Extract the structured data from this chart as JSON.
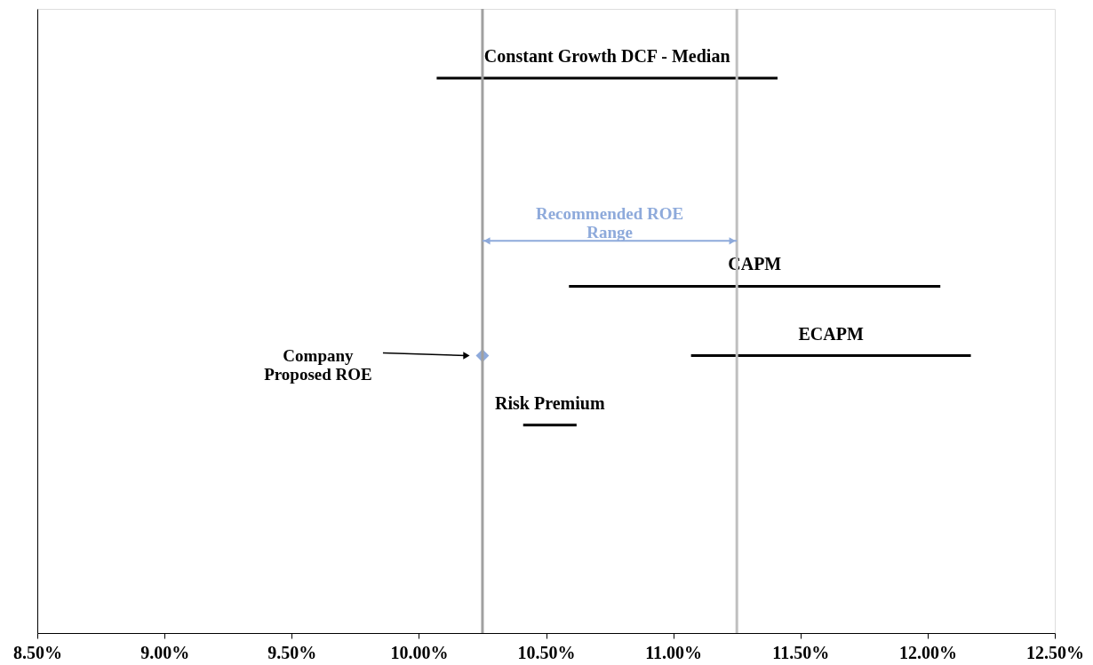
{
  "chart_data": {
    "type": "bar",
    "orientation": "horizontal",
    "tick_labels": "x",
    "grid": false,
    "categories": [
      "Constant Growth DCF - Median",
      null,
      null,
      "CAPM",
      "ECAPM",
      "Risk Premium",
      null,
      null
    ],
    "series": [
      {
        "color": "#000000",
        "base": [
          10.07,
          null,
          null,
          10.59,
          11.07,
          10.41,
          null,
          null
        ],
        "values": [
          1.34,
          null,
          null,
          1.46,
          1.1,
          0.21,
          null,
          null
        ]
      },
      {
        "type": "scatter",
        "name": "Company\nProposed ROE",
        "color": "#8eaadb",
        "marker": "diamond",
        "values": [
          null,
          null,
          null,
          null,
          10.25,
          null,
          null,
          null
        ]
      }
    ],
    "xlim": [
      8.5,
      12.5
    ],
    "xticks": [
      {
        "value": 8.5,
        "label": "8.50%"
      },
      {
        "value": 9.0,
        "label": "9.00%"
      },
      {
        "value": 9.5,
        "label": "9.50%"
      },
      {
        "value": 10.0,
        "label": "10.00%"
      },
      {
        "value": 10.5,
        "label": "10.50%"
      },
      {
        "value": 11.0,
        "label": "11.00%"
      },
      {
        "value": 11.5,
        "label": "11.50%"
      },
      {
        "value": 12.0,
        "label": "12.00%"
      },
      {
        "value": 12.5,
        "label": "12.50%"
      }
    ],
    "ref_lines": [
      {
        "axis": "x",
        "value": 10.25,
        "color": "#a0a0a0"
      },
      {
        "axis": "x",
        "value": 11.25,
        "color": "#bfbfbf"
      }
    ],
    "annotations": [
      "Recommended ROE\nRange"
    ]
  }
}
